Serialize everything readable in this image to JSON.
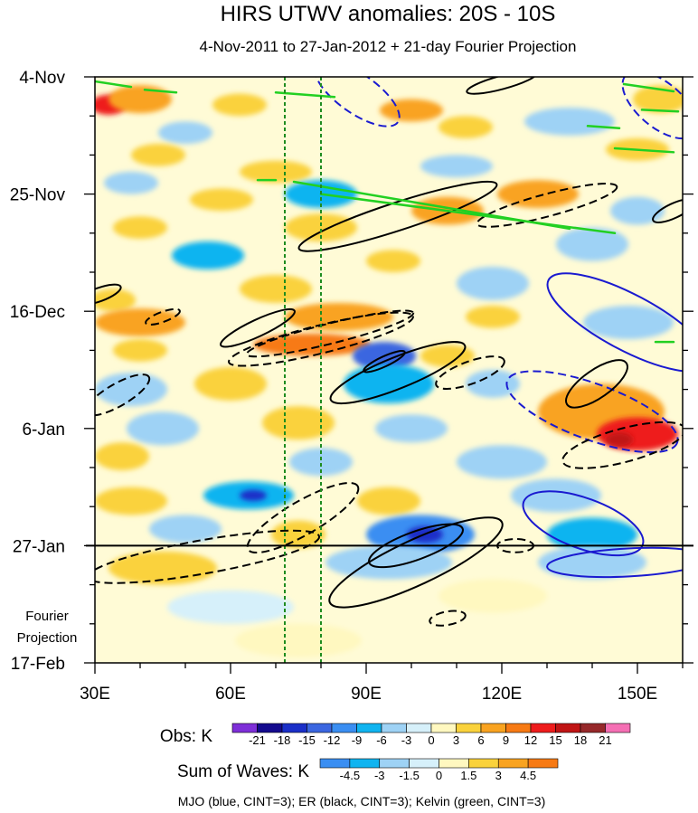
{
  "chart_data": {
    "type": "heatmap",
    "title": "HIRS UTWV anomalies: 20S - 10S",
    "subtitle": "4-Nov-2011 to 27-Jan-2012 + 21-day Fourier Projection",
    "x_axis": {
      "range": [
        30,
        160
      ],
      "ticks": [
        {
          "value": 30,
          "label": "30E"
        },
        {
          "value": 60,
          "label": "60E"
        },
        {
          "value": 90,
          "label": "90E"
        },
        {
          "value": 120,
          "label": "120E"
        },
        {
          "value": 150,
          "label": "150E"
        }
      ]
    },
    "y_axis": {
      "range_days": [
        0,
        105
      ],
      "note": "time increases downward; day 0 = 4-Nov-2011",
      "ticks": [
        {
          "day": 0,
          "label": "4-Nov"
        },
        {
          "day": 21,
          "label": "25-Nov"
        },
        {
          "day": 42,
          "label": "16-Dec"
        },
        {
          "day": 63,
          "label": "6-Jan"
        },
        {
          "day": 84,
          "label": "27-Jan"
        },
        {
          "day": 105,
          "label": "17-Feb"
        }
      ]
    },
    "projection": {
      "start_day": 84,
      "label_line1": "Fourier",
      "label_line2": "Projection"
    },
    "vertical_lines_lon": [
      72,
      80
    ],
    "obs_colorbar": {
      "label": "Obs: K",
      "levels": [
        "-21",
        "-18",
        "-15",
        "-12",
        "-9",
        "-6",
        "-3",
        "0",
        "3",
        "6",
        "9",
        "12",
        "15",
        "18",
        "21"
      ],
      "colors": [
        "#7e2fd8",
        "#140a8e",
        "#1a2fc8",
        "#3b66e0",
        "#3a8ef2",
        "#10b4f0",
        "#9ed2f5",
        "#d6f0fa",
        "#fff8c0",
        "#fad23c",
        "#f9a320",
        "#f77a14",
        "#ee1c1c",
        "#c01414",
        "#96282a",
        "#f56fb4"
      ]
    },
    "waves_colorbar": {
      "label": "Sum of Waves: K",
      "levels": [
        "-4.5",
        "-3",
        "-1.5",
        "0",
        "1.5",
        "3",
        "4.5"
      ],
      "colors": [
        "#3a8ef2",
        "#10b4f0",
        "#9ed2f5",
        "#d6f0fa",
        "#fff8c0",
        "#fad23c",
        "#f9a320",
        "#f77a14"
      ]
    },
    "footer": "MJO (blue, CINT=3); ER (black, CINT=3); Kelvin (green, CINT=3)",
    "wave_colors": {
      "MJO": "#1a1ad0",
      "ER": "#000000",
      "Kelvin": "#22d022"
    },
    "anomaly_blobs": [
      {
        "lon": 33,
        "day": 5,
        "rx": 4,
        "ry": 1.8,
        "value": 14
      },
      {
        "lon": 40,
        "day": 4,
        "rx": 7,
        "ry": 2.5,
        "value": 7
      },
      {
        "lon": 62,
        "day": 5,
        "rx": 6,
        "ry": 2,
        "value": 6
      },
      {
        "lon": 100,
        "day": 6,
        "rx": 7,
        "ry": 2,
        "value": 7
      },
      {
        "lon": 112,
        "day": 9,
        "rx": 6,
        "ry": 2,
        "value": 5
      },
      {
        "lon": 50,
        "day": 10,
        "rx": 6,
        "ry": 2,
        "value": -4
      },
      {
        "lon": 135,
        "day": 8,
        "rx": 10,
        "ry": 2.5,
        "value": -4
      },
      {
        "lon": 155,
        "day": 4,
        "rx": 6,
        "ry": 2.5,
        "value": 5
      },
      {
        "lon": 44,
        "day": 14,
        "rx": 6,
        "ry": 2,
        "value": 6
      },
      {
        "lon": 70,
        "day": 17,
        "rx": 8,
        "ry": 2,
        "value": 5
      },
      {
        "lon": 110,
        "day": 16,
        "rx": 8,
        "ry": 2,
        "value": -4
      },
      {
        "lon": 150,
        "day": 13,
        "rx": 7,
        "ry": 2,
        "value": 5
      },
      {
        "lon": 38,
        "day": 19,
        "rx": 6,
        "ry": 2,
        "value": -5
      },
      {
        "lon": 58,
        "day": 22,
        "rx": 7,
        "ry": 2,
        "value": 6
      },
      {
        "lon": 80,
        "day": 21,
        "rx": 8,
        "ry": 2.5,
        "value": -7
      },
      {
        "lon": 128,
        "day": 21,
        "rx": 9,
        "ry": 2.5,
        "value": 9
      },
      {
        "lon": 150,
        "day": 24,
        "rx": 6,
        "ry": 2.5,
        "value": -4
      },
      {
        "lon": 40,
        "day": 27,
        "rx": 6,
        "ry": 2,
        "value": 5
      },
      {
        "lon": 80,
        "day": 27,
        "rx": 8,
        "ry": 2.5,
        "value": 6
      },
      {
        "lon": 108,
        "day": 24,
        "rx": 8,
        "ry": 2.5,
        "value": 7
      },
      {
        "lon": 55,
        "day": 32,
        "rx": 8,
        "ry": 2.5,
        "value": -6
      },
      {
        "lon": 140,
        "day": 30,
        "rx": 8,
        "ry": 3,
        "value": -5
      },
      {
        "lon": 96,
        "day": 33,
        "rx": 6,
        "ry": 2,
        "value": 5
      },
      {
        "lon": 34,
        "day": 40,
        "rx": 5,
        "ry": 2,
        "value": 5
      },
      {
        "lon": 70,
        "day": 38,
        "rx": 8,
        "ry": 2.5,
        "value": 4
      },
      {
        "lon": 118,
        "day": 37,
        "rx": 8,
        "ry": 3,
        "value": -4
      },
      {
        "lon": 84,
        "day": 43,
        "rx": 12,
        "ry": 2.5,
        "value": 8
      },
      {
        "lon": 40,
        "day": 44,
        "rx": 10,
        "ry": 2.5,
        "value": 7
      },
      {
        "lon": 118,
        "day": 43,
        "rx": 6,
        "ry": 2,
        "value": 5
      },
      {
        "lon": 148,
        "day": 44,
        "rx": 10,
        "ry": 3,
        "value": -5
      },
      {
        "lon": 78,
        "day": 48,
        "rx": 13,
        "ry": 2,
        "value": 11
      },
      {
        "lon": 40,
        "day": 49,
        "rx": 6,
        "ry": 2,
        "value": 5
      },
      {
        "lon": 108,
        "day": 50,
        "rx": 6,
        "ry": 2,
        "value": 5
      },
      {
        "lon": 94,
        "day": 50,
        "rx": 7,
        "ry": 2.5,
        "value": -13
      },
      {
        "lon": 95,
        "day": 55,
        "rx": 10,
        "ry": 3.5,
        "value": -7
      },
      {
        "lon": 38,
        "day": 56,
        "rx": 8,
        "ry": 3,
        "value": -5
      },
      {
        "lon": 60,
        "day": 55,
        "rx": 8,
        "ry": 3,
        "value": 6
      },
      {
        "lon": 118,
        "day": 55,
        "rx": 6,
        "ry": 2.5,
        "value": -5
      },
      {
        "lon": 142,
        "day": 60,
        "rx": 14,
        "ry": 5,
        "value": 8
      },
      {
        "lon": 150,
        "day": 64,
        "rx": 9,
        "ry": 3,
        "value": 13
      },
      {
        "lon": 146,
        "day": 65,
        "rx": 3,
        "ry": 1.3,
        "value": 16
      },
      {
        "lon": 45,
        "day": 63,
        "rx": 8,
        "ry": 3,
        "value": -4
      },
      {
        "lon": 75,
        "day": 62,
        "rx": 8,
        "ry": 3,
        "value": 5
      },
      {
        "lon": 100,
        "day": 63,
        "rx": 8,
        "ry": 2.5,
        "value": -5
      },
      {
        "lon": 36,
        "day": 68,
        "rx": 6,
        "ry": 2.5,
        "value": 5
      },
      {
        "lon": 80,
        "day": 69,
        "rx": 7,
        "ry": 2.5,
        "value": -4
      },
      {
        "lon": 120,
        "day": 69,
        "rx": 10,
        "ry": 3,
        "value": -5
      },
      {
        "lon": 64,
        "day": 75,
        "rx": 10,
        "ry": 2.5,
        "value": -7
      },
      {
        "lon": 65,
        "day": 75,
        "rx": 3,
        "ry": 1,
        "value": -16
      },
      {
        "lon": 38,
        "day": 76,
        "rx": 8,
        "ry": 2.5,
        "value": 5
      },
      {
        "lon": 95,
        "day": 76,
        "rx": 7,
        "ry": 2.5,
        "value": 5
      },
      {
        "lon": 132,
        "day": 75,
        "rx": 10,
        "ry": 3,
        "value": -5
      },
      {
        "lon": 102,
        "day": 82,
        "rx": 12,
        "ry": 3.5,
        "value": -9
      },
      {
        "lon": 103,
        "day": 82,
        "rx": 4,
        "ry": 1.5,
        "value": -17
      },
      {
        "lon": 50,
        "day": 81,
        "rx": 8,
        "ry": 2.5,
        "value": -5
      },
      {
        "lon": 75,
        "day": 82,
        "rx": 6,
        "ry": 2.5,
        "value": 5
      },
      {
        "lon": 140,
        "day": 82,
        "rx": 10,
        "ry": 3,
        "value": -6
      },
      {
        "lon": 45,
        "day": 88,
        "rx": 12,
        "ry": 3,
        "value": 4
      },
      {
        "lon": 95,
        "day": 87,
        "rx": 14,
        "ry": 3,
        "value": -3
      },
      {
        "lon": 140,
        "day": 87,
        "rx": 12,
        "ry": 3,
        "value": -3
      },
      {
        "lon": 118,
        "day": 93,
        "rx": 12,
        "ry": 3,
        "value": 2
      },
      {
        "lon": 60,
        "day": 95,
        "rx": 14,
        "ry": 3,
        "value": -2
      },
      {
        "lon": 75,
        "day": 101,
        "rx": 14,
        "ry": 3,
        "value": 2
      }
    ],
    "wave_contours": [
      {
        "wave": "MJO",
        "lon": 88,
        "day": 3,
        "rx": 11,
        "ry": 3.5,
        "angle": 35,
        "dashed": true
      },
      {
        "wave": "MJO",
        "lon": 155,
        "day": 5,
        "rx": 10,
        "ry": 4,
        "angle": 40,
        "dashed": true
      },
      {
        "wave": "MJO",
        "lon": 148,
        "day": 44,
        "rx": 20,
        "ry": 5,
        "angle": 28,
        "dashed": false
      },
      {
        "wave": "MJO",
        "lon": 140,
        "day": 60,
        "rx": 20,
        "ry": 5,
        "angle": 20,
        "dashed": true
      },
      {
        "wave": "MJO",
        "lon": 138,
        "day": 80,
        "rx": 14,
        "ry": 4.5,
        "angle": 20,
        "dashed": false
      },
      {
        "wave": "MJO",
        "lon": 148,
        "day": 87,
        "rx": 18,
        "ry": 2.5,
        "angle": -3,
        "dashed": false
      },
      {
        "wave": "ER",
        "lon": 66,
        "day": 45,
        "rx": 9,
        "ry": 1.5,
        "angle": -25,
        "dashed": false
      },
      {
        "wave": "ER",
        "lon": 80,
        "day": 47,
        "rx": 21,
        "ry": 2.5,
        "angle": -14,
        "dashed": true
      },
      {
        "wave": "ER",
        "lon": 82,
        "day": 46,
        "rx": 19,
        "ry": 1.8,
        "angle": -14,
        "dashed": true
      },
      {
        "wave": "ER",
        "lon": 97,
        "day": 53,
        "rx": 16,
        "ry": 2.8,
        "angle": -22,
        "dashed": false
      },
      {
        "wave": "ER",
        "lon": 94,
        "day": 51,
        "rx": 5,
        "ry": 0.9,
        "angle": -25,
        "dashed": false
      },
      {
        "wave": "ER",
        "lon": 97,
        "day": 25,
        "rx": 23,
        "ry": 2.5,
        "angle": -18,
        "dashed": false
      },
      {
        "wave": "ER",
        "lon": 130,
        "day": 23,
        "rx": 16,
        "ry": 2,
        "angle": -15,
        "dashed": true
      },
      {
        "wave": "ER",
        "lon": 141,
        "day": 55,
        "rx": 8,
        "ry": 2.5,
        "angle": -35,
        "dashed": false
      },
      {
        "wave": "ER",
        "lon": 147,
        "day": 66,
        "rx": 14,
        "ry": 3,
        "angle": -15,
        "dashed": true
      },
      {
        "wave": "ER",
        "lon": 113,
        "day": 53,
        "rx": 8,
        "ry": 2,
        "angle": -20,
        "dashed": true
      },
      {
        "wave": "ER",
        "lon": 35,
        "day": 57,
        "rx": 8,
        "ry": 2,
        "angle": -30,
        "dashed": true
      },
      {
        "wave": "ER",
        "lon": 31,
        "day": 39,
        "rx": 5,
        "ry": 1.2,
        "angle": -20,
        "dashed": false
      },
      {
        "wave": "ER",
        "lon": 76,
        "day": 79,
        "rx": 14,
        "ry": 3,
        "angle": -30,
        "dashed": true
      },
      {
        "wave": "ER",
        "lon": 54,
        "day": 86,
        "rx": 26,
        "ry": 3,
        "angle": -10,
        "dashed": true
      },
      {
        "wave": "ER",
        "lon": 101,
        "day": 87,
        "rx": 21,
        "ry": 4,
        "angle": -25,
        "dashed": false
      },
      {
        "wave": "ER",
        "lon": 101,
        "day": 84,
        "rx": 11,
        "ry": 2.5,
        "angle": -20,
        "dashed": false
      },
      {
        "wave": "ER",
        "lon": 108,
        "day": 97,
        "rx": 4,
        "ry": 1.2,
        "angle": -10,
        "dashed": true
      },
      {
        "wave": "ER",
        "lon": 123,
        "day": 84,
        "rx": 4,
        "ry": 1.2,
        "angle": 0,
        "dashed": true
      },
      {
        "wave": "ER",
        "lon": 120,
        "day": 1,
        "rx": 8,
        "ry": 1.2,
        "angle": -15,
        "dashed": false
      },
      {
        "wave": "ER",
        "lon": 158,
        "day": 24,
        "rx": 5,
        "ry": 1.3,
        "angle": -25,
        "dashed": false
      },
      {
        "wave": "ER",
        "lon": 45,
        "day": 43,
        "rx": 4,
        "ry": 0.9,
        "angle": -20,
        "dashed": true
      }
    ],
    "kelvin_lines": [
      {
        "lon1": 30,
        "day1": 0.8,
        "lon2": 38,
        "day2": 1.8
      },
      {
        "lon1": 41,
        "day1": 2.3,
        "lon2": 48,
        "day2": 2.8
      },
      {
        "lon1": 70,
        "day1": 2.8,
        "lon2": 83,
        "day2": 3.6
      },
      {
        "lon1": 74,
        "day1": 18.8,
        "lon2": 135,
        "day2": 27.2
      },
      {
        "lon1": 80,
        "day1": 21,
        "lon2": 145,
        "day2": 28
      },
      {
        "lon1": 66,
        "day1": 18.5,
        "lon2": 70,
        "day2": 18.5
      },
      {
        "lon1": 147,
        "day1": 1.3,
        "lon2": 158,
        "day2": 2.6
      },
      {
        "lon1": 151,
        "day1": 5.9,
        "lon2": 159,
        "day2": 6.2
      },
      {
        "lon1": 145,
        "day1": 12.8,
        "lon2": 158,
        "day2": 13.5
      },
      {
        "lon1": 139,
        "day1": 8.8,
        "lon2": 146,
        "day2": 9.2
      },
      {
        "lon1": 154,
        "day1": 47.5,
        "lon2": 158,
        "day2": 47.5
      }
    ]
  }
}
